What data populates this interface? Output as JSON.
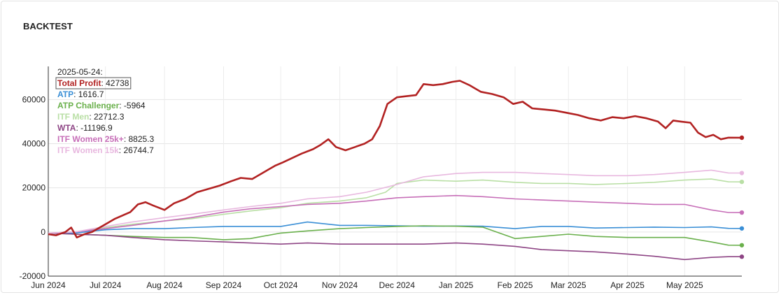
{
  "title": "BACKTEST",
  "chart_data": {
    "type": "line",
    "title": "BACKTEST",
    "xlabel": "",
    "ylabel": "",
    "x_range": [
      "2024-06-01",
      "2025-05-31"
    ],
    "ylim": [
      -20000,
      75000
    ],
    "grid": true,
    "yticks": [
      -20000,
      0,
      20000,
      40000,
      60000
    ],
    "ytick_labels": [
      "-20000",
      "0",
      "20000",
      "40000",
      "60000"
    ],
    "xticks": [
      "2024-06-01",
      "2024-07-01",
      "2024-08-01",
      "2024-09-01",
      "2024-10-01",
      "2024-11-01",
      "2024-12-01",
      "2025-01-01",
      "2025-02-01",
      "2025-03-01",
      "2025-04-01",
      "2025-05-01"
    ],
    "xtick_labels": [
      "Jun 2024",
      "Jul 2024",
      "Aug 2024",
      "Sep 2024",
      "Oct 2024",
      "Nov 2024",
      "Dec 2024",
      "Jan 2025",
      "Feb 2025",
      "Mar 2025",
      "Apr 2025",
      "May 2025"
    ],
    "legend": {
      "date": "2025-05-24:",
      "position": "top-left",
      "highlighted": "Total Profit"
    },
    "series": [
      {
        "name": "Total Profit",
        "value_label": "42738",
        "color": "#b22222",
        "points": [
          [
            "2024-06-01",
            -1000
          ],
          [
            "2024-06-05",
            -1500
          ],
          [
            "2024-06-10",
            0
          ],
          [
            "2024-06-13",
            2000
          ],
          [
            "2024-06-16",
            -2500
          ],
          [
            "2024-06-20",
            -1000
          ],
          [
            "2024-06-24",
            0
          ],
          [
            "2024-06-28",
            2000
          ],
          [
            "2024-07-02",
            4000
          ],
          [
            "2024-07-06",
            6000
          ],
          [
            "2024-07-10",
            7500
          ],
          [
            "2024-07-14",
            9000
          ],
          [
            "2024-07-18",
            12500
          ],
          [
            "2024-07-22",
            13500
          ],
          [
            "2024-07-26",
            12000
          ],
          [
            "2024-08-01",
            10000
          ],
          [
            "2024-08-06",
            13000
          ],
          [
            "2024-08-12",
            15000
          ],
          [
            "2024-08-18",
            18000
          ],
          [
            "2024-08-24",
            19500
          ],
          [
            "2024-08-30",
            21000
          ],
          [
            "2024-09-05",
            23000
          ],
          [
            "2024-09-10",
            24500
          ],
          [
            "2024-09-16",
            24000
          ],
          [
            "2024-09-22",
            27000
          ],
          [
            "2024-09-28",
            30000
          ],
          [
            "2024-10-02",
            31500
          ],
          [
            "2024-10-07",
            33500
          ],
          [
            "2024-10-12",
            35500
          ],
          [
            "2024-10-18",
            37500
          ],
          [
            "2024-10-22",
            39500
          ],
          [
            "2024-10-26",
            42000
          ],
          [
            "2024-10-30",
            38500
          ],
          [
            "2024-11-04",
            37000
          ],
          [
            "2024-11-09",
            38500
          ],
          [
            "2024-11-14",
            40000
          ],
          [
            "2024-11-18",
            42000
          ],
          [
            "2024-11-22",
            48000
          ],
          [
            "2024-11-26",
            58000
          ],
          [
            "2024-12-01",
            61000
          ],
          [
            "2024-12-06",
            61500
          ],
          [
            "2024-12-11",
            62000
          ],
          [
            "2024-12-15",
            67000
          ],
          [
            "2024-12-20",
            66500
          ],
          [
            "2024-12-25",
            67000
          ],
          [
            "2024-12-30",
            68000
          ],
          [
            "2025-01-03",
            68500
          ],
          [
            "2025-01-08",
            66500
          ],
          [
            "2025-01-14",
            63500
          ],
          [
            "2025-01-20",
            62500
          ],
          [
            "2025-01-26",
            61000
          ],
          [
            "2025-01-31",
            58000
          ],
          [
            "2025-02-05",
            59000
          ],
          [
            "2025-02-10",
            56000
          ],
          [
            "2025-02-16",
            55500
          ],
          [
            "2025-02-22",
            55000
          ],
          [
            "2025-02-28",
            54000
          ],
          [
            "2025-03-06",
            53000
          ],
          [
            "2025-03-12",
            51500
          ],
          [
            "2025-03-18",
            50500
          ],
          [
            "2025-03-24",
            52000
          ],
          [
            "2025-03-30",
            51500
          ],
          [
            "2025-04-05",
            52500
          ],
          [
            "2025-04-11",
            51500
          ],
          [
            "2025-04-17",
            50000
          ],
          [
            "2025-04-21",
            47000
          ],
          [
            "2025-04-25",
            50500
          ],
          [
            "2025-04-29",
            50000
          ],
          [
            "2025-05-04",
            49500
          ],
          [
            "2025-05-08",
            45000
          ],
          [
            "2025-05-12",
            43000
          ],
          [
            "2025-05-16",
            44000
          ],
          [
            "2025-05-20",
            42000
          ],
          [
            "2025-05-24",
            42738
          ],
          [
            "2025-05-31",
            42700
          ]
        ]
      },
      {
        "name": "ATP",
        "value_label": "1616.7",
        "color": "#3a8fd6",
        "points": [
          [
            "2024-06-01",
            -500
          ],
          [
            "2024-06-15",
            -500
          ],
          [
            "2024-07-01",
            1000
          ],
          [
            "2024-07-15",
            1500
          ],
          [
            "2024-08-01",
            1500
          ],
          [
            "2024-08-15",
            2000
          ],
          [
            "2024-09-01",
            2500
          ],
          [
            "2024-09-15",
            2500
          ],
          [
            "2024-10-01",
            2500
          ],
          [
            "2024-10-15",
            4500
          ],
          [
            "2024-11-01",
            3000
          ],
          [
            "2024-11-15",
            3000
          ],
          [
            "2024-12-01",
            2800
          ],
          [
            "2024-12-15",
            2600
          ],
          [
            "2025-01-01",
            2700
          ],
          [
            "2025-01-15",
            2600
          ],
          [
            "2025-02-01",
            1500
          ],
          [
            "2025-02-15",
            2500
          ],
          [
            "2025-03-01",
            2500
          ],
          [
            "2025-03-15",
            1800
          ],
          [
            "2025-04-01",
            2000
          ],
          [
            "2025-04-15",
            2200
          ],
          [
            "2025-05-01",
            2000
          ],
          [
            "2025-05-15",
            2300
          ],
          [
            "2025-05-24",
            1617
          ],
          [
            "2025-05-31",
            1600
          ]
        ]
      },
      {
        "name": "ATP Challenger",
        "value_label": "-5964",
        "color": "#6ab04c",
        "points": [
          [
            "2024-06-01",
            -500
          ],
          [
            "2024-06-15",
            -1000
          ],
          [
            "2024-07-01",
            -1500
          ],
          [
            "2024-07-15",
            -2000
          ],
          [
            "2024-08-01",
            -2500
          ],
          [
            "2024-08-15",
            -2500
          ],
          [
            "2024-09-01",
            -3500
          ],
          [
            "2024-09-15",
            -3000
          ],
          [
            "2024-10-01",
            -500
          ],
          [
            "2024-10-15",
            500
          ],
          [
            "2024-11-01",
            1500
          ],
          [
            "2024-11-15",
            2000
          ],
          [
            "2024-12-01",
            2500
          ],
          [
            "2024-12-15",
            2800
          ],
          [
            "2025-01-01",
            2600
          ],
          [
            "2025-01-15",
            2200
          ],
          [
            "2025-02-01",
            -3000
          ],
          [
            "2025-02-15",
            -2000
          ],
          [
            "2025-03-01",
            -1000
          ],
          [
            "2025-03-15",
            -2000
          ],
          [
            "2025-04-01",
            -2500
          ],
          [
            "2025-04-15",
            -2500
          ],
          [
            "2025-05-01",
            -2500
          ],
          [
            "2025-05-15",
            -4500
          ],
          [
            "2025-05-24",
            -5964
          ],
          [
            "2025-05-31",
            -6000
          ]
        ]
      },
      {
        "name": "ITF Men",
        "value_label": "22712.3",
        "color": "#b9dfa5",
        "points": [
          [
            "2024-06-01",
            -500
          ],
          [
            "2024-06-15",
            0
          ],
          [
            "2024-07-01",
            2000
          ],
          [
            "2024-07-15",
            3500
          ],
          [
            "2024-08-01",
            5000
          ],
          [
            "2024-08-15",
            6000
          ],
          [
            "2024-09-01",
            8000
          ],
          [
            "2024-09-15",
            9500
          ],
          [
            "2024-10-01",
            11000
          ],
          [
            "2024-10-15",
            13000
          ],
          [
            "2024-11-01",
            14000
          ],
          [
            "2024-11-15",
            15500
          ],
          [
            "2024-11-25",
            18000
          ],
          [
            "2024-12-01",
            22000
          ],
          [
            "2024-12-15",
            23500
          ],
          [
            "2025-01-01",
            23000
          ],
          [
            "2025-01-15",
            23500
          ],
          [
            "2025-02-01",
            22500
          ],
          [
            "2025-02-15",
            22000
          ],
          [
            "2025-03-01",
            22000
          ],
          [
            "2025-03-15",
            21500
          ],
          [
            "2025-04-01",
            22000
          ],
          [
            "2025-04-15",
            22500
          ],
          [
            "2025-05-01",
            23500
          ],
          [
            "2025-05-15",
            24000
          ],
          [
            "2025-05-24",
            22712
          ],
          [
            "2025-05-31",
            22700
          ]
        ]
      },
      {
        "name": "WTA",
        "value_label": "-11196.9",
        "color": "#8e4585",
        "points": [
          [
            "2024-06-01",
            -500
          ],
          [
            "2024-06-15",
            -1000
          ],
          [
            "2024-07-01",
            -1500
          ],
          [
            "2024-07-15",
            -2500
          ],
          [
            "2024-08-01",
            -3500
          ],
          [
            "2024-08-15",
            -4000
          ],
          [
            "2024-09-01",
            -4500
          ],
          [
            "2024-09-15",
            -5000
          ],
          [
            "2024-10-01",
            -5500
          ],
          [
            "2024-10-15",
            -5000
          ],
          [
            "2024-11-01",
            -5500
          ],
          [
            "2024-11-15",
            -5500
          ],
          [
            "2024-12-01",
            -5500
          ],
          [
            "2024-12-15",
            -5500
          ],
          [
            "2025-01-01",
            -5000
          ],
          [
            "2025-01-15",
            -5500
          ],
          [
            "2025-02-01",
            -6500
          ],
          [
            "2025-02-15",
            -8000
          ],
          [
            "2025-03-01",
            -8500
          ],
          [
            "2025-03-15",
            -9000
          ],
          [
            "2025-04-01",
            -10000
          ],
          [
            "2025-04-15",
            -11000
          ],
          [
            "2025-05-01",
            -12500
          ],
          [
            "2025-05-15",
            -11500
          ],
          [
            "2025-05-24",
            -11197
          ],
          [
            "2025-05-31",
            -11200
          ]
        ]
      },
      {
        "name": "ITF Women 25k+",
        "value_label": "8825.3",
        "color": "#c76fb8",
        "points": [
          [
            "2024-06-01",
            -500
          ],
          [
            "2024-06-15",
            0
          ],
          [
            "2024-07-01",
            1500
          ],
          [
            "2024-07-15",
            3000
          ],
          [
            "2024-08-01",
            5000
          ],
          [
            "2024-08-15",
            6500
          ],
          [
            "2024-09-01",
            9000
          ],
          [
            "2024-09-15",
            10500
          ],
          [
            "2024-10-01",
            11500
          ],
          [
            "2024-10-15",
            12500
          ],
          [
            "2024-11-01",
            13000
          ],
          [
            "2024-11-15",
            14000
          ],
          [
            "2024-12-01",
            15500
          ],
          [
            "2024-12-15",
            16000
          ],
          [
            "2025-01-01",
            16500
          ],
          [
            "2025-01-15",
            16000
          ],
          [
            "2025-02-01",
            15000
          ],
          [
            "2025-02-15",
            14500
          ],
          [
            "2025-03-01",
            14000
          ],
          [
            "2025-03-15",
            13500
          ],
          [
            "2025-04-01",
            13000
          ],
          [
            "2025-04-15",
            12500
          ],
          [
            "2025-05-01",
            12500
          ],
          [
            "2025-05-15",
            10000
          ],
          [
            "2025-05-24",
            8825
          ],
          [
            "2025-05-31",
            8800
          ]
        ]
      },
      {
        "name": "ITF Women 15k",
        "value_label": "26744.7",
        "color": "#e8b8df",
        "points": [
          [
            "2024-06-01",
            -500
          ],
          [
            "2024-06-15",
            0
          ],
          [
            "2024-07-01",
            2500
          ],
          [
            "2024-07-15",
            4500
          ],
          [
            "2024-08-01",
            6500
          ],
          [
            "2024-08-15",
            8000
          ],
          [
            "2024-09-01",
            10000
          ],
          [
            "2024-09-15",
            11500
          ],
          [
            "2024-10-01",
            13000
          ],
          [
            "2024-10-15",
            15000
          ],
          [
            "2024-11-01",
            16000
          ],
          [
            "2024-11-15",
            18000
          ],
          [
            "2024-12-01",
            21500
          ],
          [
            "2024-12-15",
            25000
          ],
          [
            "2025-01-01",
            26500
          ],
          [
            "2025-01-15",
            27000
          ],
          [
            "2025-02-01",
            27000
          ],
          [
            "2025-02-15",
            26500
          ],
          [
            "2025-03-01",
            26000
          ],
          [
            "2025-03-15",
            25500
          ],
          [
            "2025-04-01",
            25500
          ],
          [
            "2025-04-15",
            26000
          ],
          [
            "2025-05-01",
            27000
          ],
          [
            "2025-05-15",
            28000
          ],
          [
            "2025-05-24",
            26745
          ],
          [
            "2025-05-31",
            26700
          ]
        ]
      }
    ]
  }
}
